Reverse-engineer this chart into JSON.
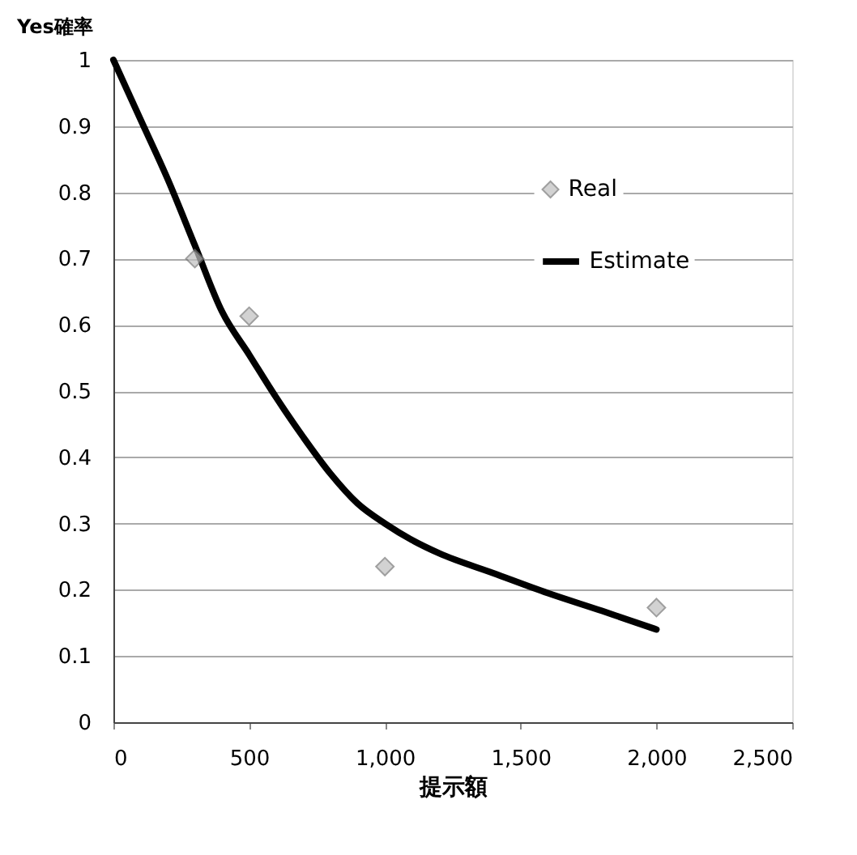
{
  "chart_data": {
    "type": "scatter",
    "xlabel": "提示額",
    "ylabel": "Yes確率",
    "xlim": [
      0,
      2500
    ],
    "xticks": [
      0,
      {
        "value": 500,
        "label": "500"
      },
      {
        "value": 1000,
        "label": "1,000"
      },
      {
        "value": 1500,
        "label": "1,500"
      },
      {
        "value": 2000,
        "label": "2,000"
      },
      {
        "value": 2500,
        "label": "2,500"
      }
    ],
    "ylim": [
      0,
      1
    ],
    "yticks": [
      0,
      0.1,
      0.2,
      0.3,
      0.4,
      0.5,
      0.6,
      0.7,
      0.8,
      0.9,
      1
    ],
    "grid": "y",
    "legend": "top right",
    "series": [
      {
        "name": "Real",
        "type": "scatter",
        "marker": "diamond",
        "color": "#c0c0c0",
        "x": [
          300,
          500,
          1000,
          2000
        ],
        "values": [
          0.7,
          0.613,
          0.235,
          0.173
        ]
      },
      {
        "name": "Estimate",
        "type": "line",
        "color": "#000000",
        "x": [
          0,
          100,
          200,
          300,
          400,
          500,
          600,
          700,
          800,
          900,
          1000,
          1100,
          1200,
          1400,
          1600,
          1800,
          2000
        ],
        "values": [
          1,
          0.91,
          0.82,
          0.72,
          0.62,
          0.555,
          0.49,
          0.43,
          0.375,
          0.33,
          0.3,
          0.275,
          0.255,
          0.225,
          0.195,
          0.168,
          0.14
        ]
      }
    ]
  }
}
